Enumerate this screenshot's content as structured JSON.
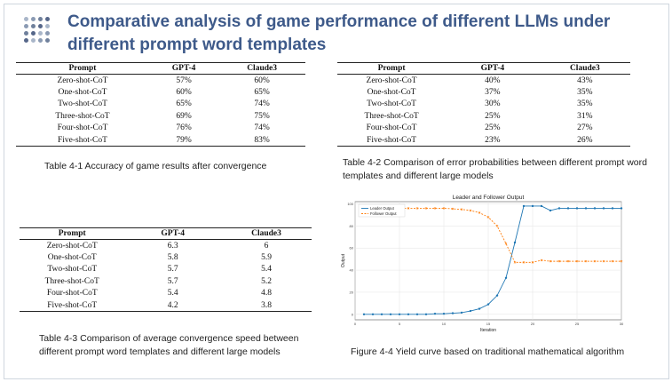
{
  "slide": {
    "title": "Comparative analysis of game performance of different LLMs under different prompt word templates"
  },
  "table1": {
    "headers": [
      "Prompt",
      "GPT-4",
      "Claude3"
    ],
    "rows": [
      [
        "Zero-shot-CoT",
        "57%",
        "60%"
      ],
      [
        "One-shot-CoT",
        "60%",
        "65%"
      ],
      [
        "Two-shot-CoT",
        "65%",
        "74%"
      ],
      [
        "Three-shot-CoT",
        "69%",
        "75%"
      ],
      [
        "Four-shot-CoT",
        "76%",
        "74%"
      ],
      [
        "Five-shot-CoT",
        "79%",
        "83%"
      ]
    ],
    "caption": "Table 4-1 Accuracy of game results after convergence"
  },
  "table2": {
    "headers": [
      "Prompt",
      "GPT-4",
      "Claude3"
    ],
    "rows": [
      [
        "Zero-shot-CoT",
        "40%",
        "43%"
      ],
      [
        "One-shot-CoT",
        "37%",
        "35%"
      ],
      [
        "Two-shot-CoT",
        "30%",
        "35%"
      ],
      [
        "Three-shot-CoT",
        "25%",
        "31%"
      ],
      [
        "Four-shot-CoT",
        "25%",
        "27%"
      ],
      [
        "Five-shot-CoT",
        "23%",
        "26%"
      ]
    ],
    "caption": "Table 4-2 Comparison of error probabilities between different prompt word templates and different large models"
  },
  "table3": {
    "headers": [
      "Prompt",
      "GPT-4",
      "Claude3"
    ],
    "rows": [
      [
        "Zero-shot-CoT",
        "6.3",
        "6"
      ],
      [
        "One-shot-CoT",
        "5.8",
        "5.9"
      ],
      [
        "Two-shot-CoT",
        "5.7",
        "5.4"
      ],
      [
        "Three-shot-CoT",
        "5.7",
        "5.2"
      ],
      [
        "Four-shot-CoT",
        "5.4",
        "4.8"
      ],
      [
        "Five-shot-CoT",
        "4.2",
        "3.8"
      ]
    ],
    "caption": "Table 4-3 Comparison of average convergence speed between different prompt word templates and different large models"
  },
  "figure4": {
    "caption": "Figure 4-4 Yield curve based on traditional mathematical algorithm"
  },
  "colors": {
    "title": "#3e5a8a",
    "leader": "#1f77b4",
    "follower": "#ff7f0e"
  },
  "chart_data": {
    "type": "line",
    "title": "Leader and Follower Output",
    "xlabel": "Iteration",
    "ylabel": "Output",
    "xlim": [
      0,
      30
    ],
    "ylim": [
      -5,
      102
    ],
    "xticks": [
      0,
      5,
      10,
      15,
      20,
      25,
      30
    ],
    "yticks": [
      0,
      20,
      40,
      60,
      80,
      100
    ],
    "grid": true,
    "legend_position": "top-left",
    "x": [
      1,
      2,
      3,
      4,
      5,
      6,
      7,
      8,
      9,
      10,
      11,
      12,
      13,
      14,
      15,
      16,
      17,
      18,
      19,
      20,
      21,
      22,
      23,
      24,
      25,
      26,
      27,
      28,
      29,
      30
    ],
    "series": [
      {
        "name": "Leader Output",
        "color": "#1f77b4",
        "marker": "circle",
        "values": [
          0,
          0,
          0,
          0,
          0,
          0,
          0,
          0,
          0.5,
          0.5,
          1,
          1.5,
          3,
          5,
          9,
          17,
          33,
          65,
          98,
          98,
          98,
          94,
          96,
          96,
          96,
          96,
          96,
          96,
          96,
          96
        ]
      },
      {
        "name": "Follower Output",
        "color": "#ff7f0e",
        "marker": "x",
        "values": [
          96,
          96,
          96,
          96,
          96,
          96,
          96,
          96,
          96,
          96,
          95.5,
          95,
          94,
          92,
          88,
          80,
          64,
          47,
          47,
          47,
          49,
          48,
          48,
          48,
          48,
          48,
          48,
          48,
          48,
          48
        ]
      }
    ]
  }
}
